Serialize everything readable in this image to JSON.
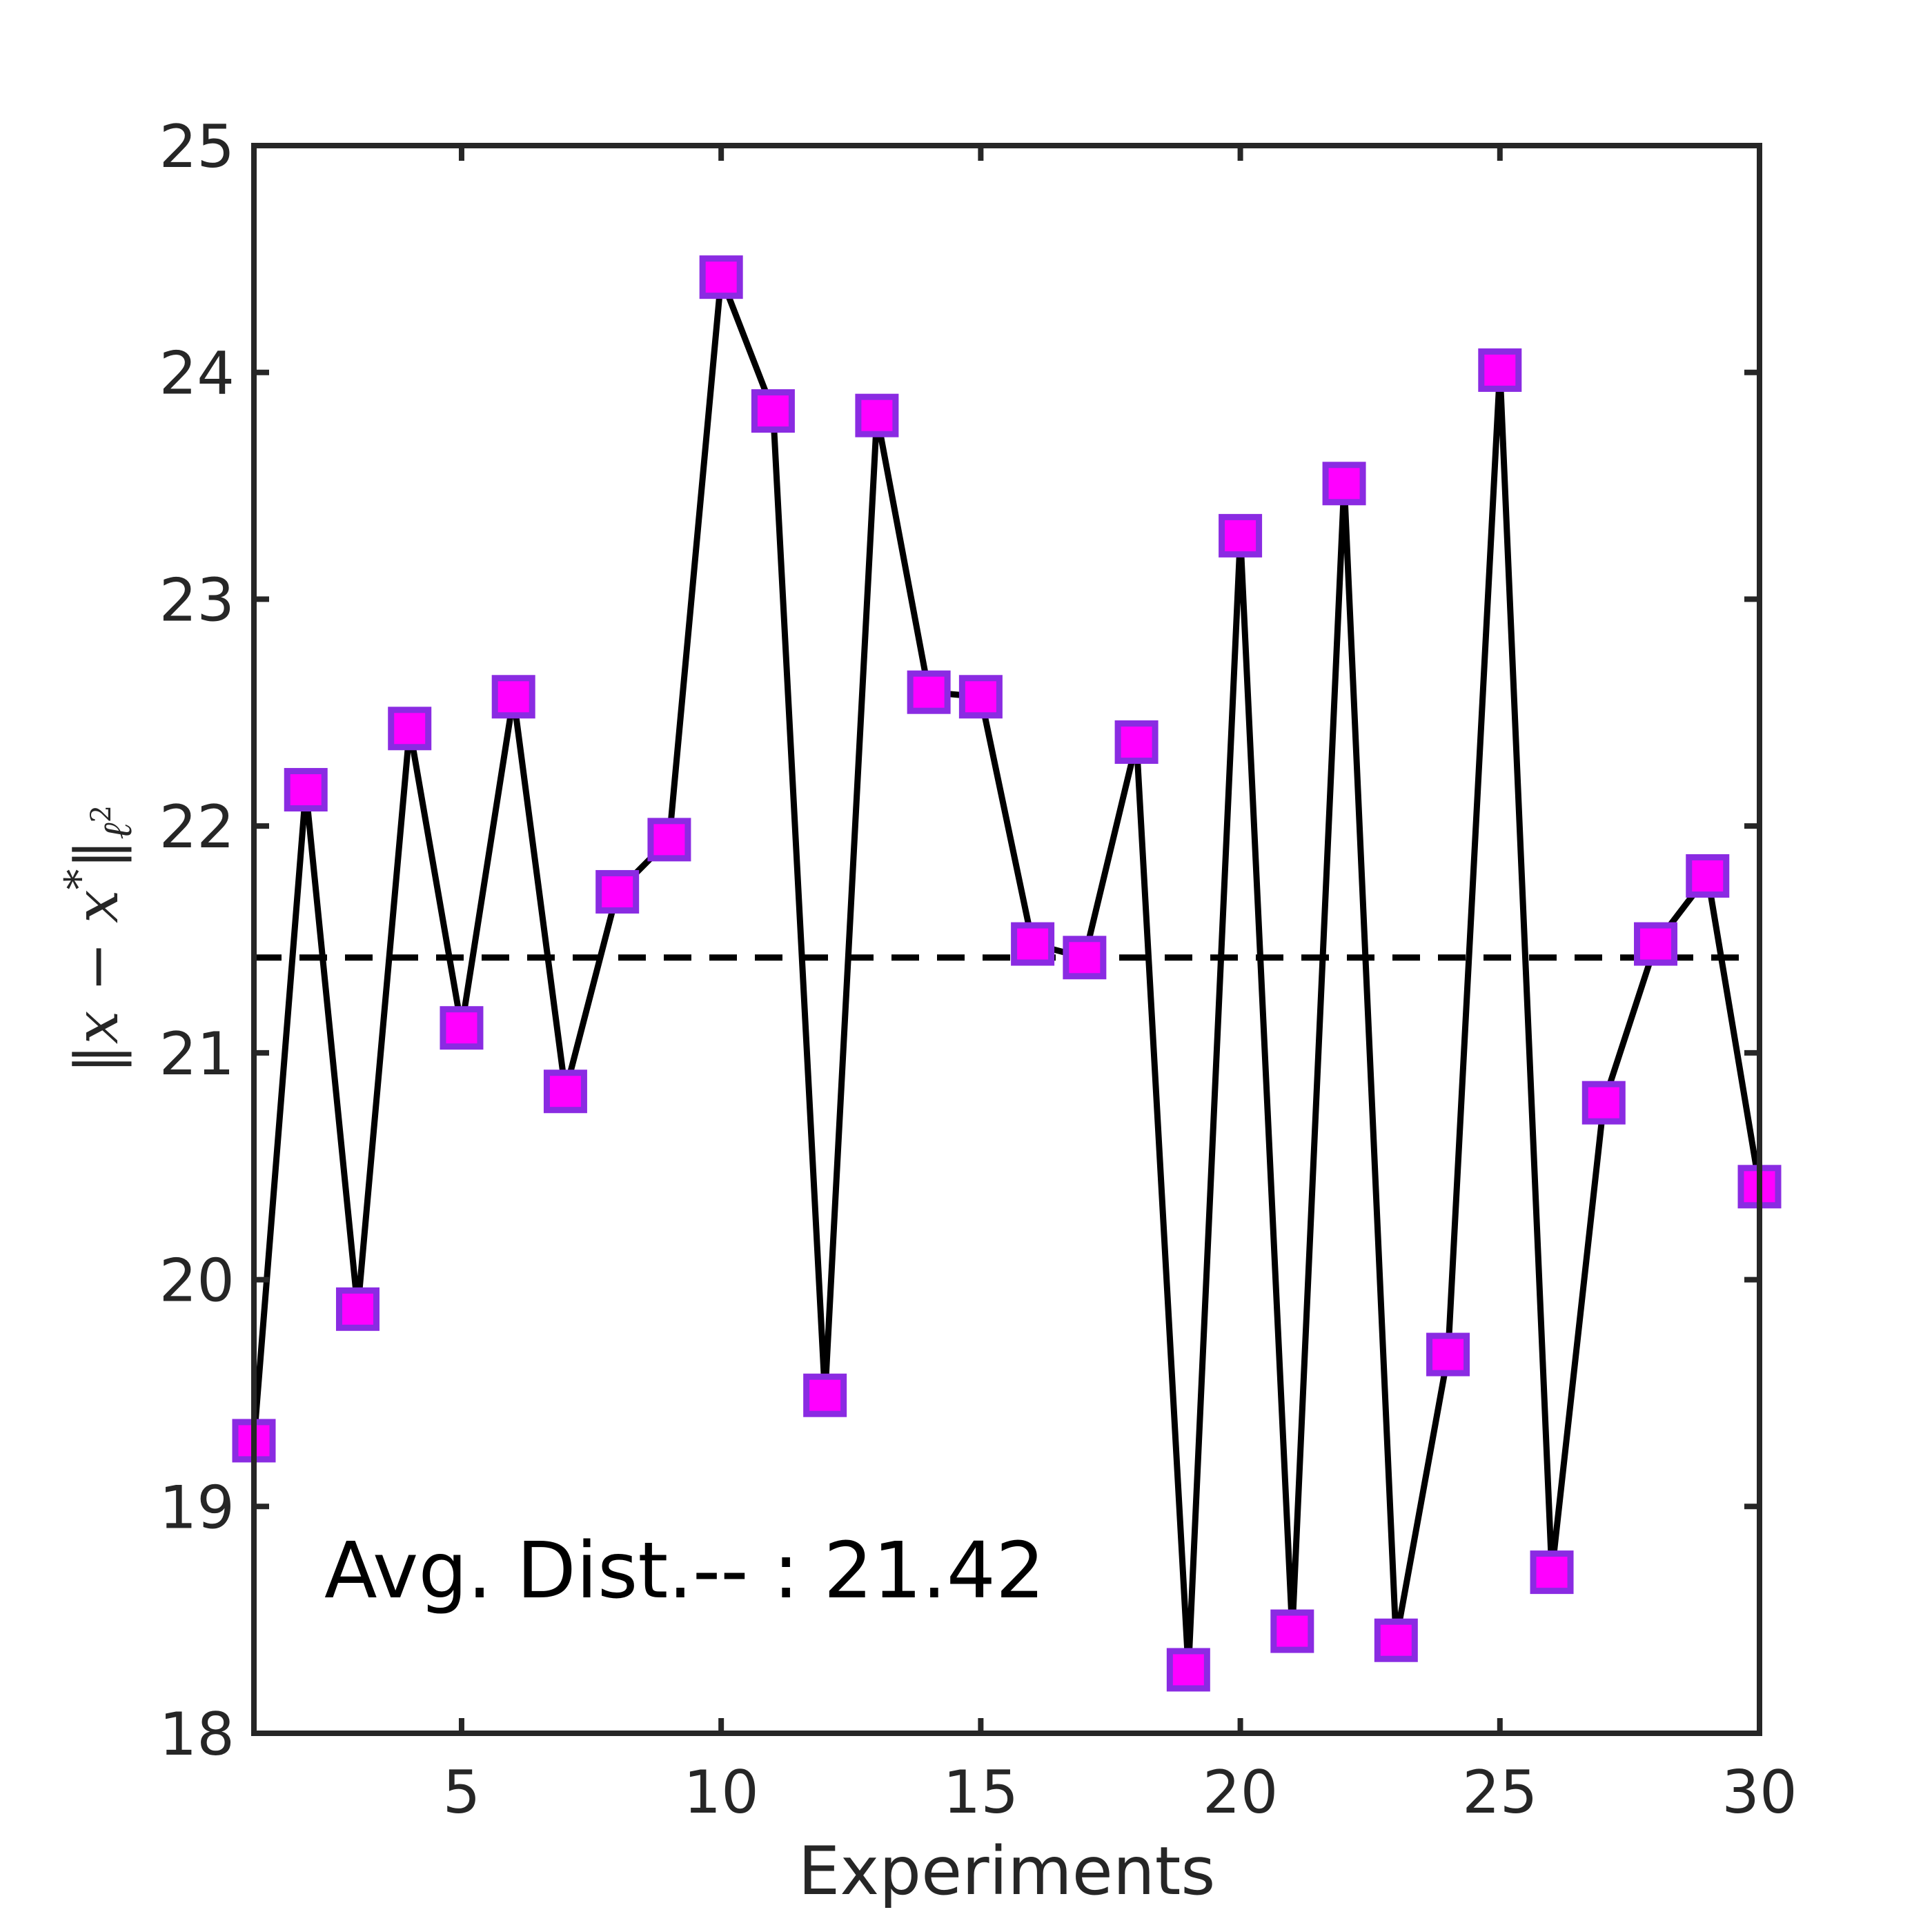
{
  "chart_data": {
    "type": "line",
    "title": "",
    "xlabel": "Experiments",
    "ylabel": {
      "bar_left": "‖",
      "x": "x",
      "minus": " − ",
      "xstar": "x",
      "star": "*",
      "bar_right": "‖",
      "sub_ell": "ℓ",
      "sub_pow": "2"
    },
    "xlim": [
      1,
      30
    ],
    "ylim": [
      18,
      25
    ],
    "xticks": [
      5,
      10,
      15,
      20,
      25,
      30
    ],
    "yticks": [
      18,
      19,
      20,
      21,
      22,
      23,
      24,
      25
    ],
    "grid": false,
    "series": [
      {
        "x": [
          1,
          2,
          3,
          4,
          5,
          6,
          7,
          8,
          9,
          10,
          11,
          12,
          13,
          14,
          15,
          16,
          17,
          18,
          19,
          20,
          21,
          22,
          23,
          24,
          25,
          26,
          27,
          28,
          29,
          30
        ],
        "values": [
          19.29,
          22.16,
          19.87,
          22.43,
          21.11,
          22.57,
          20.83,
          21.71,
          21.94,
          24.42,
          23.83,
          19.49,
          23.81,
          22.59,
          22.57,
          21.48,
          21.42,
          22.37,
          18.28,
          23.28,
          18.45,
          23.51,
          18.41,
          19.67,
          24.01,
          18.71,
          20.78,
          21.48,
          21.78,
          20.41
        ],
        "line_color": "#000000",
        "marker": "square",
        "marker_fill": "#ff00ff",
        "marker_edge": "#8a2be2"
      }
    ],
    "reference_line": {
      "y": 21.42,
      "style": "dashed",
      "color": "#000000"
    },
    "annotation": "Avg. Dist.-- : 21.42"
  }
}
